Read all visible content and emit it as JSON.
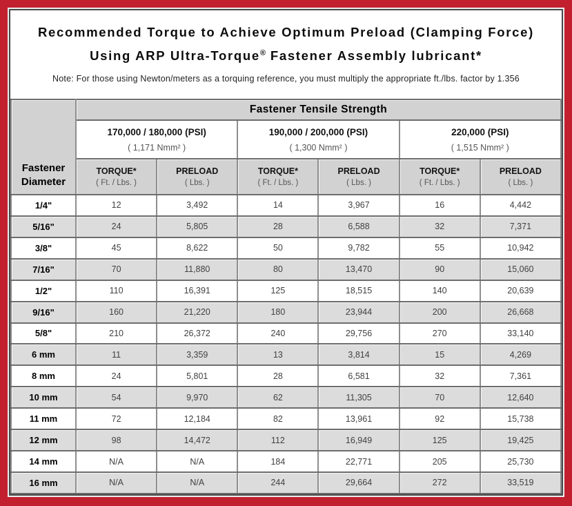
{
  "colors": {
    "frame_red": "#c3202f",
    "header_gray": "#d2d2d2",
    "row_stripe_gray": "#dcdcdc",
    "grid_line": "#6d6d6d"
  },
  "title": {
    "line1": "Recommended Torque to Achieve Optimum Preload (Clamping Force)",
    "line2_before_reg": "Using ARP Ultra-Torque",
    "registered_mark": "®",
    "line2_after_reg": " Fastener Assembly lubricant*",
    "note": "Note: For those using Newton/meters as a torquing reference, you must multiply the appropriate ft./lbs. factor by 1.356"
  },
  "table": {
    "corner_header": "Fastener\nDiameter",
    "tensile_strength_header": "Fastener Tensile Strength",
    "strength_groups": [
      {
        "psi": "170,000 / 180,000 (PSI)",
        "nmm": "( 1,171 Nmm² )"
      },
      {
        "psi": "190,000 / 200,000 (PSI)",
        "nmm": "( 1,300 Nmm² )"
      },
      {
        "psi": "220,000 (PSI)",
        "nmm": "( 1,515 Nmm² )"
      }
    ],
    "column_headers": {
      "torque_label": "TORQUE*",
      "torque_unit": "( Ft. / Lbs. )",
      "preload_label": "PRELOAD",
      "preload_unit": "( Lbs. )"
    },
    "rows": [
      {
        "diameter": "1/4\"",
        "values": [
          "12",
          "3,492",
          "14",
          "3,967",
          "16",
          "4,442"
        ]
      },
      {
        "diameter": "5/16\"",
        "values": [
          "24",
          "5,805",
          "28",
          "6,588",
          "32",
          "7,371"
        ]
      },
      {
        "diameter": "3/8\"",
        "values": [
          "45",
          "8,622",
          "50",
          "9,782",
          "55",
          "10,942"
        ]
      },
      {
        "diameter": "7/16\"",
        "values": [
          "70",
          "11,880",
          "80",
          "13,470",
          "90",
          "15,060"
        ]
      },
      {
        "diameter": "1/2\"",
        "values": [
          "110",
          "16,391",
          "125",
          "18,515",
          "140",
          "20,639"
        ]
      },
      {
        "diameter": "9/16\"",
        "values": [
          "160",
          "21,220",
          "180",
          "23,944",
          "200",
          "26,668"
        ]
      },
      {
        "diameter": "5/8\"",
        "values": [
          "210",
          "26,372",
          "240",
          "29,756",
          "270",
          "33,140"
        ]
      },
      {
        "diameter": "6 mm",
        "values": [
          "11",
          "3,359",
          "13",
          "3,814",
          "15",
          "4,269"
        ]
      },
      {
        "diameter": "8 mm",
        "values": [
          "24",
          "5,801",
          "28",
          "6,581",
          "32",
          "7,361"
        ]
      },
      {
        "diameter": "10 mm",
        "values": [
          "54",
          "9,970",
          "62",
          "11,305",
          "70",
          "12,640"
        ]
      },
      {
        "diameter": "11 mm",
        "values": [
          "72",
          "12,184",
          "82",
          "13,961",
          "92",
          "15,738"
        ]
      },
      {
        "diameter": "12 mm",
        "values": [
          "98",
          "14,472",
          "112",
          "16,949",
          "125",
          "19,425"
        ]
      },
      {
        "diameter": "14 mm",
        "values": [
          "N/A",
          "N/A",
          "184",
          "22,771",
          "205",
          "25,730"
        ]
      },
      {
        "diameter": "16 mm",
        "values": [
          "N/A",
          "N/A",
          "244",
          "29,664",
          "272",
          "33,519"
        ]
      }
    ]
  }
}
